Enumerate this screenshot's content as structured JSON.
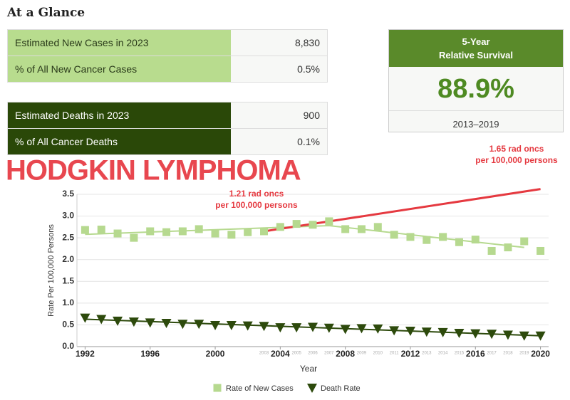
{
  "header": {
    "title": "At a Glance"
  },
  "new_cases_table": {
    "rows": [
      [
        "Estimated New Cases in 2023",
        "8,830"
      ],
      [
        "% of All New Cancer Cases",
        "0.5%"
      ]
    ]
  },
  "deaths_table": {
    "rows": [
      [
        "Estimated Deaths in 2023",
        "900"
      ],
      [
        "% of All Cancer Deaths",
        "0.1%"
      ]
    ]
  },
  "survival": {
    "title_line1": "5-Year",
    "title_line2": "Relative Survival",
    "value": "88.9%",
    "period": "2013–2019"
  },
  "chart_data": {
    "type": "scatter",
    "title": "HODGKIN LYMPHOMA",
    "x_label": "Year",
    "y_label": "Rate Per 100,000 Persons",
    "x": [
      1992,
      1993,
      1994,
      1995,
      1996,
      1997,
      1998,
      1999,
      2000,
      2001,
      2002,
      2003,
      2004,
      2005,
      2006,
      2007,
      2008,
      2009,
      2010,
      2011,
      2012,
      2013,
      2014,
      2015,
      2016,
      2017,
      2018,
      2019,
      2020
    ],
    "series": [
      {
        "name": "Rate of New Cases",
        "color": "#b6d98f",
        "marker": "square",
        "values": [
          2.68,
          2.69,
          2.6,
          2.5,
          2.65,
          2.63,
          2.65,
          2.7,
          2.6,
          2.57,
          2.63,
          2.65,
          2.75,
          2.82,
          2.8,
          2.88,
          2.7,
          2.7,
          2.75,
          2.57,
          2.52,
          2.45,
          2.52,
          2.4,
          2.46,
          2.2,
          2.28,
          2.42,
          2.2
        ]
      },
      {
        "name": "Death Rate",
        "color": "#2d4a0c",
        "marker": "triangle",
        "values": [
          0.66,
          0.63,
          0.59,
          0.57,
          0.55,
          0.54,
          0.52,
          0.52,
          0.49,
          0.49,
          0.48,
          0.47,
          0.44,
          0.44,
          0.45,
          0.43,
          0.4,
          0.42,
          0.41,
          0.37,
          0.36,
          0.34,
          0.33,
          0.31,
          0.3,
          0.29,
          0.27,
          0.25,
          0.25
        ]
      }
    ],
    "trend_lines": [
      {
        "color": "#b6d98f",
        "x": [
          1992,
          2007,
          2019
        ],
        "values": [
          2.58,
          2.78,
          2.28
        ]
      },
      {
        "color": "#2d4a0c",
        "x": [
          1992,
          2020
        ],
        "values": [
          0.63,
          0.25
        ]
      },
      {
        "color": "#e53940",
        "x": [
          2003,
          2020
        ],
        "values": [
          2.65,
          3.62
        ]
      }
    ],
    "annotations": [
      {
        "line1": "1.21 rad oncs",
        "line2": "per 100,000 persons"
      },
      {
        "line1": "1.65 rad oncs",
        "line2": "per 100,000 persons"
      }
    ],
    "xlim": [
      1991.5,
      2020.5
    ],
    "xticks": [
      1992,
      1996,
      2000,
      2004,
      2008,
      2012,
      2016,
      2020
    ],
    "minor_xticks": [
      2003,
      2005,
      2006,
      2007,
      2009,
      2010,
      2011,
      2013,
      2014,
      2015,
      2017,
      2018,
      2019
    ],
    "ylim": [
      0,
      3.5
    ],
    "yticks": [
      {
        "value": 0,
        "label": "0.0"
      },
      0.5,
      {
        "value": 1,
        "label": "1.0"
      },
      1.5,
      {
        "value": 2,
        "label": "2.0"
      },
      2.5,
      {
        "value": 3,
        "label": "3.0"
      },
      3.5
    ],
    "grid": true
  }
}
